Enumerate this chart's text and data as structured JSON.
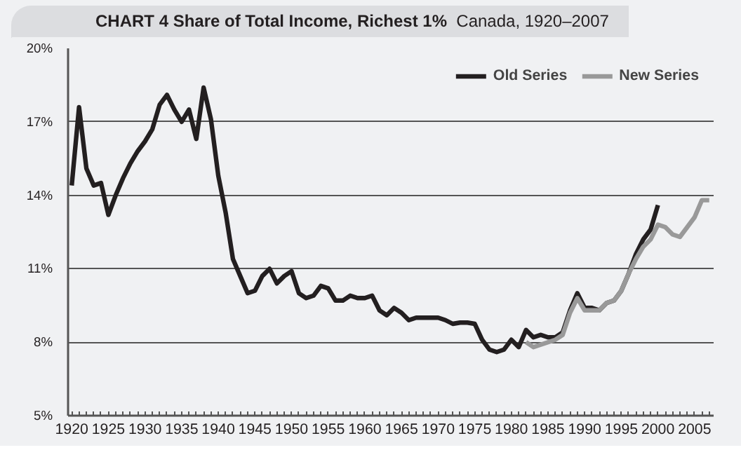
{
  "chart_data": {
    "type": "line",
    "title": "CHART 4  Share of Total Income, Richest 1%",
    "subtitle": "Canada, 1920–2007",
    "xlim": [
      1919.5,
      2007.6
    ],
    "xticks": [
      1920,
      1925,
      1930,
      1935,
      1940,
      1945,
      1950,
      1955,
      1960,
      1965,
      1970,
      1975,
      1980,
      1985,
      1990,
      1995,
      2000,
      2005
    ],
    "ylim": [
      5,
      20
    ],
    "yticks": [
      {
        "value": 5,
        "label": "5%"
      },
      {
        "value": 8,
        "label": "8%"
      },
      {
        "value": 11,
        "label": "11%"
      },
      {
        "value": 14,
        "label": "14%"
      },
      {
        "value": 17,
        "label": "17%"
      },
      {
        "value": 20,
        "label": "20%"
      }
    ],
    "grid": "y",
    "legend": "top right",
    "line_style": "solid",
    "marker": "none",
    "series": [
      {
        "name": "Old Series",
        "color": "#231f20",
        "x": [
          1920,
          1921,
          1922,
          1923,
          1924,
          1925,
          1926,
          1927,
          1928,
          1929,
          1930,
          1931,
          1932,
          1933,
          1934,
          1935,
          1936,
          1937,
          1938,
          1939,
          1940,
          1941,
          1942,
          1943,
          1944,
          1945,
          1946,
          1947,
          1948,
          1949,
          1950,
          1951,
          1952,
          1953,
          1954,
          1955,
          1956,
          1957,
          1958,
          1959,
          1960,
          1961,
          1962,
          1963,
          1964,
          1965,
          1966,
          1967,
          1968,
          1969,
          1970,
          1971,
          1972,
          1973,
          1974,
          1975,
          1976,
          1977,
          1978,
          1979,
          1980,
          1981,
          1982,
          1983,
          1984,
          1985,
          1986,
          1987,
          1988,
          1989,
          1990,
          1991,
          1992,
          1993,
          1994,
          1995,
          1996,
          1997,
          1998,
          1999,
          2000
        ],
        "values": [
          14.4,
          17.6,
          15.1,
          14.4,
          14.5,
          13.2,
          14.0,
          14.7,
          15.3,
          15.8,
          16.2,
          16.7,
          17.7,
          18.1,
          17.5,
          17.0,
          17.5,
          16.3,
          18.4,
          17.1,
          14.8,
          13.3,
          11.4,
          10.7,
          10.0,
          10.1,
          10.7,
          11.0,
          10.4,
          10.7,
          10.9,
          10.0,
          9.8,
          9.9,
          10.3,
          10.2,
          9.7,
          9.7,
          9.9,
          9.8,
          9.8,
          9.9,
          9.3,
          9.1,
          9.4,
          9.2,
          8.9,
          9.0,
          9.0,
          9.0,
          9.0,
          8.9,
          8.75,
          8.8,
          8.8,
          8.75,
          8.1,
          7.7,
          7.6,
          7.7,
          8.1,
          7.8,
          8.5,
          8.2,
          8.3,
          8.2,
          8.2,
          8.4,
          9.3,
          10.0,
          9.4,
          9.4,
          9.3,
          9.6,
          9.7,
          10.1,
          10.8,
          11.6,
          12.2,
          12.6,
          13.6
        ]
      },
      {
        "name": "New Series",
        "color": "#999999",
        "x": [
          1982,
          1983,
          1984,
          1985,
          1986,
          1987,
          1988,
          1989,
          1990,
          1991,
          1992,
          1993,
          1994,
          1995,
          1996,
          1997,
          1998,
          1999,
          2000,
          2001,
          2002,
          2003,
          2004,
          2005,
          2006,
          2007
        ],
        "values": [
          8.0,
          7.8,
          7.9,
          8.0,
          8.1,
          8.3,
          9.2,
          9.8,
          9.3,
          9.3,
          9.3,
          9.6,
          9.7,
          10.1,
          10.8,
          11.4,
          11.9,
          12.2,
          12.8,
          12.7,
          12.4,
          12.3,
          12.7,
          13.1,
          13.8,
          13.8
        ]
      }
    ]
  }
}
